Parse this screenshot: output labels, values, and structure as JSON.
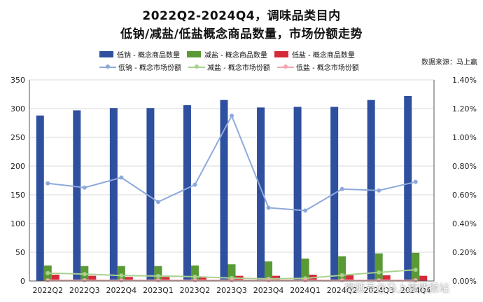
{
  "title_line1": "2022Q2-2024Q4，调味品类目内",
  "title_line2": "低钠/减盐/低盐概念商品数量，市场份额走势",
  "source": "数据来源：马上赢",
  "watermark": "搜狐号@马上赢情报站",
  "colors": {
    "low_sodium_bar": "#2f4f9f",
    "reduced_salt_bar": "#5a9a35",
    "low_salt_bar": "#d42a3a",
    "low_sodium_line": "#8ea9db",
    "reduced_salt_line": "#a9d18e",
    "low_salt_line": "#f4a6b0"
  },
  "chart_data": {
    "type": "bar",
    "categories": [
      "2022Q2",
      "2022Q3",
      "2022Q4",
      "2023Q1",
      "2023Q2",
      "2023Q3",
      "2023Q4",
      "2024Q1",
      "2024Q2",
      "2024Q3",
      "2024Q4"
    ],
    "series": [
      {
        "name": "低钠 - 概念商品数量",
        "type": "bar",
        "axis": "left",
        "color": "#2f4f9f",
        "values": [
          288,
          297,
          301,
          301,
          306,
          315,
          302,
          303,
          303,
          315,
          322
        ]
      },
      {
        "name": "减盐 - 概念商品数量",
        "type": "bar",
        "axis": "left",
        "color": "#5a9a35",
        "values": [
          27,
          26,
          26,
          26,
          27,
          29,
          34,
          39,
          43,
          48,
          49
        ]
      },
      {
        "name": "低盐 - 概念商品数量",
        "type": "bar",
        "axis": "left",
        "color": "#d42a3a",
        "values": [
          11,
          9,
          7,
          7,
          6,
          9,
          9,
          11,
          10,
          10,
          9
        ]
      },
      {
        "name": "低钠 - 概念市场份额",
        "type": "line",
        "axis": "right",
        "color": "#8ea9db",
        "values": [
          0.0068,
          0.0065,
          0.0072,
          0.0055,
          0.0067,
          0.0115,
          0.0051,
          0.0049,
          0.0064,
          0.0063,
          0.0069
        ]
      },
      {
        "name": "减盐 - 概念市场份额",
        "type": "line",
        "axis": "right",
        "color": "#a9d18e",
        "values": [
          0.00055,
          0.00048,
          0.00038,
          0.00035,
          0.0003,
          0.0002,
          0.00015,
          0.00018,
          0.0004,
          0.0006,
          0.00078
        ]
      },
      {
        "name": "低盐 - 概念市场份额",
        "type": "line",
        "axis": "right",
        "color": "#f4a6b0",
        "values": [
          5e-05,
          5e-05,
          5e-05,
          5e-05,
          5e-05,
          5e-05,
          5e-05,
          5e-05,
          5e-05,
          5e-05,
          5e-05
        ]
      }
    ],
    "y_left": {
      "ylim": [
        0,
        350
      ],
      "ticks": [
        "0",
        "50",
        "100",
        "150",
        "200",
        "250",
        "300",
        "350"
      ]
    },
    "y_right": {
      "ylim": [
        0,
        0.014
      ],
      "ticks": [
        "0.00%",
        "0.20%",
        "0.40%",
        "0.60%",
        "0.80%",
        "1.00%",
        "1.20%",
        "1.40%"
      ]
    },
    "grid": true,
    "legend_position": "top"
  }
}
